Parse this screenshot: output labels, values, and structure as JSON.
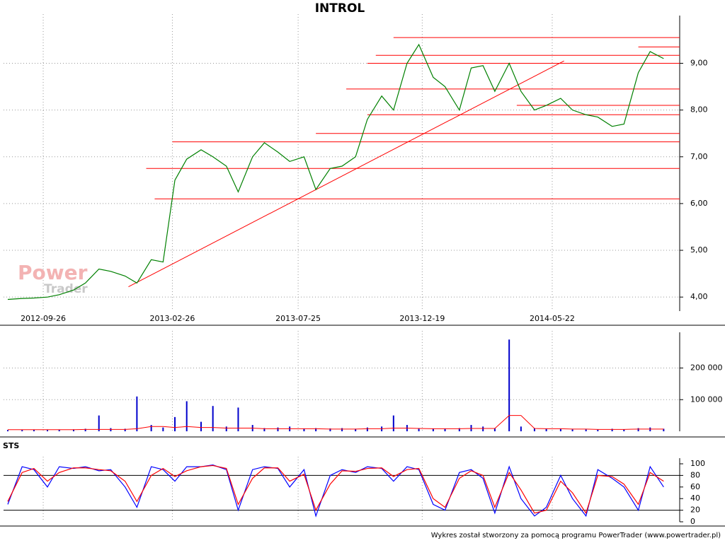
{
  "chart_data": [
    {
      "type": "line",
      "title": "INTROL",
      "x": [
        "2012-08-15",
        "2012-09-01",
        "2012-09-15",
        "2012-10-01",
        "2012-10-15",
        "2012-11-01",
        "2012-11-15",
        "2012-12-01",
        "2012-12-15",
        "2013-01-01",
        "2013-01-15",
        "2013-02-01",
        "2013-02-15",
        "2013-03-01",
        "2013-03-15",
        "2013-04-01",
        "2013-04-15",
        "2013-05-01",
        "2013-05-15",
        "2013-06-01",
        "2013-06-15",
        "2013-07-01",
        "2013-07-15",
        "2013-08-01",
        "2013-08-15",
        "2013-09-01",
        "2013-09-15",
        "2013-10-01",
        "2013-10-15",
        "2013-11-01",
        "2013-11-15",
        "2013-12-01",
        "2013-12-15",
        "2014-01-01",
        "2014-01-15",
        "2014-02-01",
        "2014-02-15",
        "2014-03-01",
        "2014-03-15",
        "2014-04-01",
        "2014-04-15",
        "2014-05-01",
        "2014-05-15",
        "2014-06-01",
        "2014-06-15",
        "2014-07-01",
        "2014-07-15",
        "2014-08-01",
        "2014-08-15",
        "2014-09-01",
        "2014-09-15",
        "2014-10-01"
      ],
      "values": [
        3.95,
        3.97,
        3.98,
        4.0,
        4.05,
        4.15,
        4.3,
        4.6,
        4.55,
        4.45,
        4.3,
        4.8,
        4.75,
        6.5,
        6.95,
        7.15,
        7.0,
        6.8,
        6.25,
        7.0,
        7.3,
        7.1,
        6.9,
        7.0,
        6.3,
        6.75,
        6.8,
        7.0,
        7.8,
        8.3,
        8.0,
        9.0,
        9.4,
        8.7,
        8.5,
        8.0,
        8.9,
        8.95,
        8.4,
        9.0,
        8.4,
        8.0,
        8.1,
        8.25,
        8.0,
        7.9,
        7.85,
        7.65,
        7.7,
        8.8,
        9.25,
        9.1
      ],
      "color": "#008000",
      "xlim": [
        "2012-08-10",
        "2014-10-20"
      ],
      "xticks": [
        "2012-09-26",
        "2013-02-26",
        "2013-07-25",
        "2013-12-19",
        "2014-05-22"
      ],
      "ylim": [
        3.7,
        9.9
      ],
      "yticks": [
        {
          "value": 4,
          "label": "4,00"
        },
        {
          "value": 5,
          "label": "5,00"
        },
        {
          "value": 6,
          "label": "6,00"
        },
        {
          "value": 7,
          "label": "7,00"
        },
        {
          "value": 8,
          "label": "8,00"
        },
        {
          "value": 9,
          "label": "9,00"
        }
      ],
      "grid": true,
      "levels": [
        {
          "value": 9.55,
          "from": "2013-11-15"
        },
        {
          "value": 9.35,
          "from": "2014-09-01"
        },
        {
          "value": 9.17,
          "from": "2013-10-25"
        },
        {
          "value": 9.0,
          "from": "2013-10-15"
        },
        {
          "value": 8.45,
          "from": "2013-09-20"
        },
        {
          "value": 8.1,
          "from": "2014-04-10"
        },
        {
          "value": 7.9,
          "from": "2013-10-15"
        },
        {
          "value": 7.5,
          "from": "2013-08-15"
        },
        {
          "value": 7.32,
          "from": "2013-02-26"
        },
        {
          "value": 6.75,
          "from": "2013-01-26"
        },
        {
          "value": 6.1,
          "from": "2013-02-05"
        }
      ],
      "level_color": "#ff0000",
      "trendline": {
        "x": [
          "2013-01-05",
          "2014-06-05"
        ],
        "values": [
          4.22,
          9.05
        ]
      },
      "watermark": [
        "Power",
        "Trader"
      ]
    },
    {
      "type": "bar",
      "values": [
        4000,
        4000,
        5000,
        4000,
        5000,
        6000,
        8000,
        50000,
        10000,
        8000,
        110000,
        20000,
        12000,
        45000,
        95000,
        30000,
        80000,
        15000,
        75000,
        20000,
        10000,
        12000,
        15000,
        8000,
        10000,
        9000,
        10000,
        8000,
        12000,
        15000,
        50000,
        20000,
        10000,
        8000,
        8000,
        10000,
        20000,
        15000,
        10000,
        290000,
        15000,
        10000,
        8000,
        8000,
        6000,
        6000,
        5000,
        8000,
        6000,
        10000,
        12000,
        8000
      ],
      "color": "#0000cc",
      "average": {
        "values": [
          5000,
          5000,
          5000,
          5000,
          5000,
          5000,
          6000,
          6000,
          6000,
          6000,
          8000,
          15000,
          15000,
          12000,
          15000,
          12000,
          12000,
          10000,
          10000,
          10000,
          8000,
          8000,
          8000,
          8000,
          8000,
          7000,
          7000,
          7000,
          8000,
          8000,
          10000,
          10000,
          9000,
          8000,
          8000,
          8000,
          9000,
          9000,
          9000,
          50000,
          50000,
          9000,
          8000,
          8000,
          7000,
          7000,
          6000,
          6000,
          6000,
          7000,
          7000,
          7000
        ],
        "color": "#ff0000"
      },
      "ylim": [
        0,
        295000
      ],
      "yticks": [
        {
          "value": 100000,
          "label": "100 000"
        },
        {
          "value": 200000,
          "label": "200 000"
        }
      ],
      "grid": true
    },
    {
      "type": "line",
      "title": "STS",
      "series": [
        {
          "color": "#0000ff",
          "values": [
            30,
            95,
            90,
            60,
            95,
            92,
            95,
            88,
            90,
            60,
            25,
            95,
            90,
            70,
            95,
            95,
            98,
            90,
            20,
            90,
            95,
            92,
            60,
            90,
            10,
            80,
            90,
            85,
            95,
            92,
            70,
            95,
            90,
            30,
            20,
            85,
            90,
            75,
            15,
            95,
            40,
            10,
            25,
            80,
            40,
            10,
            90,
            75,
            60,
            20,
            95,
            60
          ]
        },
        {
          "color": "#ff0000",
          "values": [
            35,
            85,
            92,
            70,
            85,
            93,
            93,
            90,
            88,
            70,
            35,
            80,
            92,
            78,
            88,
            95,
            97,
            92,
            30,
            75,
            93,
            93,
            70,
            82,
            20,
            65,
            88,
            87,
            92,
            93,
            78,
            90,
            92,
            40,
            25,
            75,
            88,
            80,
            25,
            85,
            55,
            15,
            20,
            70,
            50,
            15,
            80,
            78,
            65,
            30,
            85,
            70
          ]
        }
      ],
      "ylim": [
        0,
        100
      ],
      "yticks": [
        0,
        20,
        40,
        60,
        80,
        100
      ],
      "reference_lines": [
        20,
        80
      ]
    }
  ],
  "footer": "Wykres został stworzony za pomocą programu PowerTrader (www.powertrader.pl)"
}
